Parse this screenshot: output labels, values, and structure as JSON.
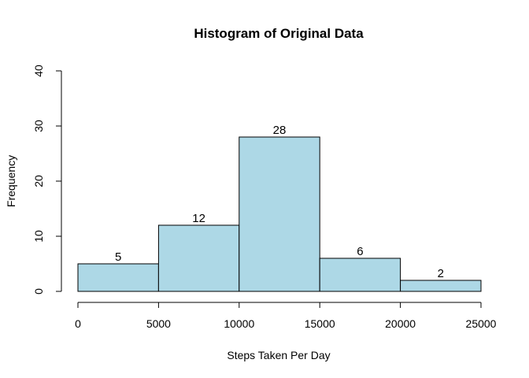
{
  "chart_data": {
    "type": "bar",
    "title": "Histogram of Original Data",
    "xlabel": "Steps Taken Per Day",
    "ylabel": "Frequency",
    "bins": [
      {
        "from": 0,
        "to": 5000,
        "value": 5
      },
      {
        "from": 5000,
        "to": 10000,
        "value": 12
      },
      {
        "from": 10000,
        "to": 15000,
        "value": 28
      },
      {
        "from": 15000,
        "to": 20000,
        "value": 6
      },
      {
        "from": 20000,
        "to": 25000,
        "value": 2
      }
    ],
    "data_labels": [
      "5",
      "12",
      "28",
      "6",
      "2"
    ],
    "xlim": [
      0,
      25000
    ],
    "ylim": [
      0,
      40
    ],
    "x_ticks": [
      0,
      5000,
      10000,
      15000,
      20000,
      25000
    ],
    "x_tick_labels": [
      "0",
      "5000",
      "10000",
      "15000",
      "20000",
      "25000"
    ],
    "y_ticks": [
      0,
      10,
      20,
      30,
      40
    ],
    "y_tick_labels": [
      "0",
      "10",
      "20",
      "30",
      "40"
    ],
    "bar_color": "#add8e6",
    "grid": false
  }
}
